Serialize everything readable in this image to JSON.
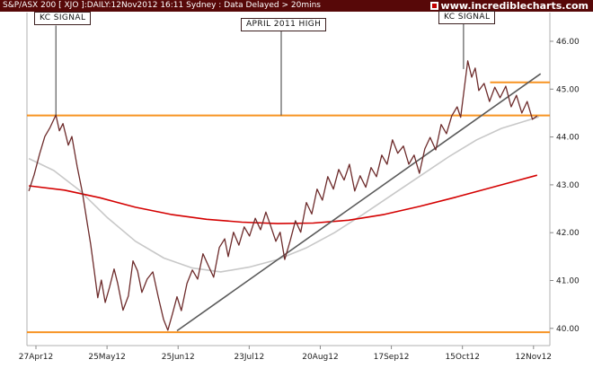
{
  "header": {
    "title": "S&P/ASX 200 [ XJO ]:DAILY:12Nov2012 16:11 Sydney : Data Delayed > 20mins",
    "site": "www.incrediblecharts.com"
  },
  "annotations": {
    "kc_signal_left": "KC SIGNAL",
    "april_high": "APRIL 2011 HIGH",
    "kc_signal_right": "KC SIGNAL"
  },
  "colors": {
    "header_bg": "#570808",
    "orange_level_line": "#f79322",
    "price_line": "#6d2b2b",
    "ma_fast": "#c8c8c8",
    "ma_slow": "#d40000",
    "trendline": "#5a5a5a"
  },
  "chart_data": {
    "type": "line",
    "title": "S&P/ASX 200 [XJO] Daily - 12Nov2012",
    "grid": false,
    "legend": "none",
    "xlim": [
      -2.53,
      144.6
    ],
    "ylim": [
      39.64,
      46.6
    ],
    "x_tick_days": [
      0,
      20,
      40,
      60,
      80,
      100,
      120,
      140
    ],
    "x_tick_labels": [
      "27Apr12",
      "25May12",
      "25Jun12",
      "23Jul12",
      "20Aug12",
      "17Sep12",
      "15Oct12",
      "12Nov12"
    ],
    "y_ticks": [
      46,
      45,
      44,
      43,
      42,
      41,
      40
    ],
    "y_tick_labels": [
      "46.00",
      "45.00",
      "44.00",
      "43.00",
      "42.00",
      "41.00",
      "40.00"
    ],
    "series": [
      {
        "name": "ma-fast-gray",
        "color": "#c8c8c8",
        "width": 1.6,
        "points": [
          [
            -2,
            43.55
          ],
          [
            5,
            43.3
          ],
          [
            12,
            42.9
          ],
          [
            20,
            42.32
          ],
          [
            28,
            41.82
          ],
          [
            36,
            41.47
          ],
          [
            44,
            41.26
          ],
          [
            52,
            41.18
          ],
          [
            60,
            41.28
          ],
          [
            68,
            41.44
          ],
          [
            76,
            41.68
          ],
          [
            84,
            42.0
          ],
          [
            92,
            42.38
          ],
          [
            100,
            42.78
          ],
          [
            108,
            43.18
          ],
          [
            116,
            43.58
          ],
          [
            124,
            43.94
          ],
          [
            131,
            44.18
          ],
          [
            138,
            44.34
          ],
          [
            141.5,
            44.42
          ]
        ]
      },
      {
        "name": "ma-slow-red",
        "color": "#d40000",
        "width": 1.6,
        "points": [
          [
            -2,
            42.98
          ],
          [
            8,
            42.89
          ],
          [
            18,
            42.73
          ],
          [
            28,
            42.53
          ],
          [
            38,
            42.38
          ],
          [
            48,
            42.28
          ],
          [
            58,
            42.22
          ],
          [
            68,
            42.19
          ],
          [
            78,
            42.2
          ],
          [
            88,
            42.26
          ],
          [
            98,
            42.38
          ],
          [
            108,
            42.55
          ],
          [
            118,
            42.74
          ],
          [
            128,
            42.94
          ],
          [
            135,
            43.08
          ],
          [
            141,
            43.2
          ]
        ]
      },
      {
        "name": "price",
        "color": "#6d2b2b",
        "width": 1.3,
        "points": [
          [
            -2,
            42.87
          ],
          [
            -0.5,
            43.21
          ],
          [
            1,
            43.64
          ],
          [
            2.5,
            44.01
          ],
          [
            4,
            44.2
          ],
          [
            5.6,
            44.46
          ],
          [
            6.6,
            44.13
          ],
          [
            7.6,
            44.28
          ],
          [
            9.1,
            43.83
          ],
          [
            10.1,
            44.01
          ],
          [
            11.6,
            43.38
          ],
          [
            13.1,
            42.83
          ],
          [
            14.4,
            42.21
          ],
          [
            15.4,
            41.76
          ],
          [
            16.4,
            41.2
          ],
          [
            17.4,
            40.64
          ],
          [
            18.4,
            41.01
          ],
          [
            19.5,
            40.54
          ],
          [
            20.7,
            40.86
          ],
          [
            22,
            41.24
          ],
          [
            23,
            40.94
          ],
          [
            24.5,
            40.38
          ],
          [
            26,
            40.68
          ],
          [
            27.3,
            41.41
          ],
          [
            28.6,
            41.2
          ],
          [
            29.8,
            40.75
          ],
          [
            31.3,
            41.03
          ],
          [
            32.9,
            41.18
          ],
          [
            34.4,
            40.66
          ],
          [
            35.9,
            40.19
          ],
          [
            37.1,
            39.96
          ],
          [
            38.4,
            40.3
          ],
          [
            39.7,
            40.66
          ],
          [
            40.9,
            40.37
          ],
          [
            42.5,
            40.94
          ],
          [
            44,
            41.22
          ],
          [
            45.5,
            41.03
          ],
          [
            47,
            41.56
          ],
          [
            48.5,
            41.31
          ],
          [
            50,
            41.07
          ],
          [
            51.6,
            41.69
          ],
          [
            53.1,
            41.87
          ],
          [
            54.1,
            41.5
          ],
          [
            55.6,
            42.01
          ],
          [
            57.1,
            41.74
          ],
          [
            58.6,
            42.12
          ],
          [
            60.1,
            41.93
          ],
          [
            61.7,
            42.3
          ],
          [
            63.2,
            42.06
          ],
          [
            64.7,
            42.43
          ],
          [
            66,
            42.15
          ],
          [
            67.5,
            41.82
          ],
          [
            68.7,
            42.01
          ],
          [
            70,
            41.44
          ],
          [
            71.5,
            41.82
          ],
          [
            73,
            42.25
          ],
          [
            74.5,
            42.01
          ],
          [
            76.1,
            42.63
          ],
          [
            77.6,
            42.39
          ],
          [
            79.1,
            42.91
          ],
          [
            80.6,
            42.68
          ],
          [
            82.1,
            43.17
          ],
          [
            83.7,
            42.91
          ],
          [
            85.2,
            43.32
          ],
          [
            86.7,
            43.1
          ],
          [
            88.2,
            43.43
          ],
          [
            89.7,
            42.87
          ],
          [
            91.2,
            43.19
          ],
          [
            92.8,
            42.95
          ],
          [
            94.3,
            43.36
          ],
          [
            95.8,
            43.17
          ],
          [
            97.3,
            43.62
          ],
          [
            98.8,
            43.43
          ],
          [
            100.3,
            43.94
          ],
          [
            101.8,
            43.66
          ],
          [
            103.4,
            43.81
          ],
          [
            104.9,
            43.43
          ],
          [
            106.4,
            43.62
          ],
          [
            107.9,
            43.24
          ],
          [
            109.4,
            43.75
          ],
          [
            110.9,
            43.99
          ],
          [
            112.5,
            43.73
          ],
          [
            114,
            44.26
          ],
          [
            115.5,
            44.07
          ],
          [
            117,
            44.44
          ],
          [
            118.5,
            44.63
          ],
          [
            119.5,
            44.41
          ],
          [
            120.5,
            45.01
          ],
          [
            121.5,
            45.59
          ],
          [
            122.6,
            45.25
          ],
          [
            123.6,
            45.44
          ],
          [
            124.6,
            44.97
          ],
          [
            126.1,
            45.12
          ],
          [
            127.6,
            44.74
          ],
          [
            129.1,
            45.04
          ],
          [
            130.6,
            44.82
          ],
          [
            132.2,
            45.06
          ],
          [
            133.7,
            44.63
          ],
          [
            135.2,
            44.87
          ],
          [
            136.7,
            44.5
          ],
          [
            138.2,
            44.74
          ],
          [
            139.7,
            44.37
          ],
          [
            141,
            44.44
          ]
        ]
      }
    ],
    "trendline": {
      "name": "uptrend-line",
      "color": "#5a5a5a",
      "width": 1.6,
      "from": [
        39.7,
        39.95
      ],
      "to": [
        142,
        45.32
      ]
    },
    "hlines": [
      {
        "name": "april-2011-high-level",
        "price": 44.45,
        "from_day": -2.53,
        "to_day": 144.6,
        "color": "#f79322",
        "width": 2
      },
      {
        "name": "upper-resistance-level",
        "price": 45.14,
        "from_day": 127.8,
        "to_day": 144.6,
        "color": "#f79322",
        "width": 2
      },
      {
        "name": "lower-support-level",
        "price": 39.92,
        "from_day": -2.53,
        "to_day": 144.6,
        "color": "#f79322",
        "width": 2
      }
    ],
    "vlines": [
      {
        "name": "kc-signal-left-pointer",
        "day": 5.6,
        "from_price": 46.33,
        "to_price": 44.45,
        "color": "#3a3a3a",
        "width": 1
      },
      {
        "name": "april-2011-high-pointer",
        "day": 69,
        "from_price": 46.22,
        "to_price": 44.45,
        "color": "#3a3a3a",
        "width": 1
      },
      {
        "name": "kc-signal-right-pointer",
        "day": 120.3,
        "from_price": 46.36,
        "to_price": 45.42,
        "color": "#3a3a3a",
        "width": 1
      }
    ]
  }
}
